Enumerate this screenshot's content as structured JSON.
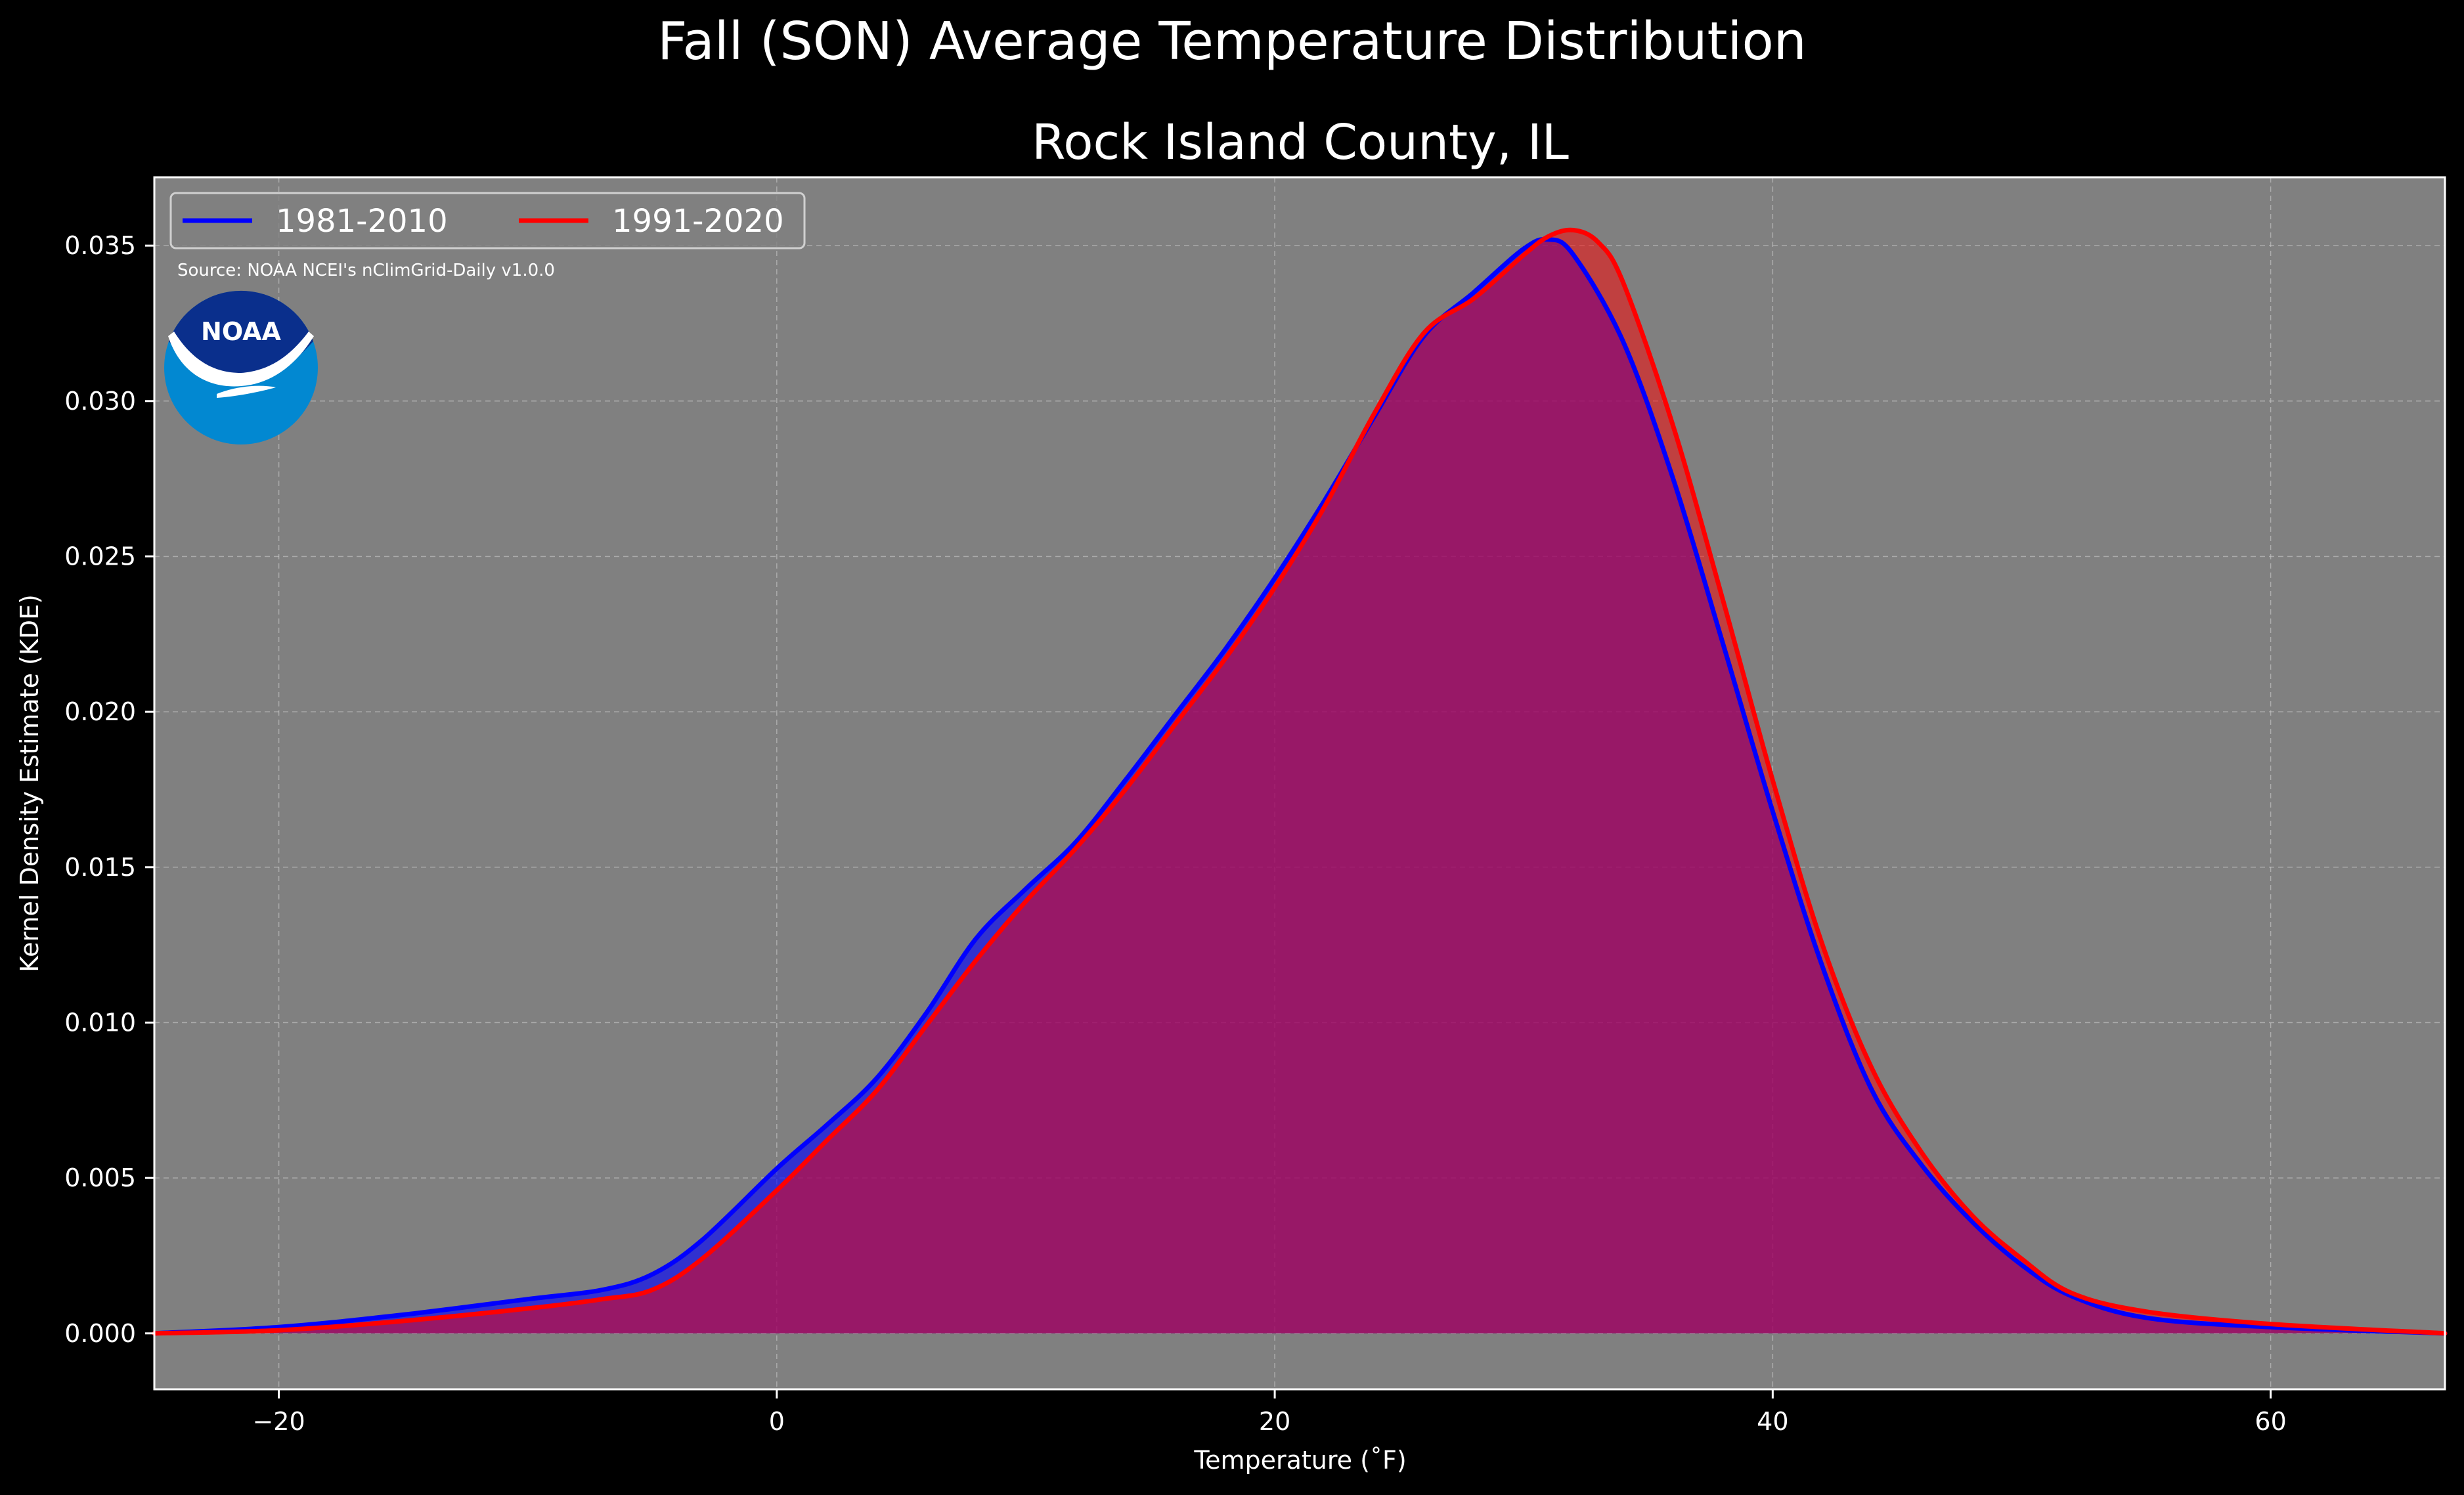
{
  "title": "Fall (SON) Average Temperature Distribution",
  "subtitle": "Rock Island County, IL",
  "source_note": "Source: NOAA NCEI's nClimGrid-Daily v1.0.0",
  "logo_text": "NOAA",
  "colors": {
    "background": "#000000",
    "plot_background": "#808080",
    "series_1981_2010": "#0000ff",
    "series_1991_2020": "#ff0000",
    "overlap_fill": "#9e1f5e",
    "logo_dark": "#0a2f8c",
    "logo_light": "#0288d1"
  },
  "chart_data": {
    "type": "area",
    "xlabel": "Temperature (˚F)",
    "ylabel": "Kernel Density Estimate (KDE)",
    "xlim": [
      -25,
      67
    ],
    "ylim": [
      -0.0018,
      0.0372
    ],
    "xticks": [
      -20,
      0,
      20,
      40,
      60
    ],
    "xtick_labels": [
      "−20",
      "0",
      "20",
      "40",
      "60"
    ],
    "yticks": [
      0,
      0.005,
      0.01,
      0.015,
      0.02,
      0.025,
      0.03,
      0.035
    ],
    "ytick_labels": [
      "0.000",
      "0.005",
      "0.010",
      "0.015",
      "0.020",
      "0.025",
      "0.030",
      "0.035"
    ],
    "grid": true,
    "legend_position": "top-left",
    "series": [
      {
        "name": "1981-2010",
        "color": "#0000ff",
        "x": [
          -25,
          -20,
          -15,
          -10,
          -7,
          -5,
          -3,
          0,
          2,
          4,
          6,
          8,
          10,
          12,
          14,
          16,
          18,
          20,
          22,
          24,
          26,
          28,
          30,
          31,
          32,
          34,
          36,
          38,
          40,
          42,
          44,
          46,
          48,
          50,
          52,
          55,
          60,
          67
        ],
        "y": [
          0,
          0.0002,
          0.0006,
          0.0011,
          0.0014,
          0.0019,
          0.003,
          0.0053,
          0.0067,
          0.0082,
          0.0103,
          0.0127,
          0.0143,
          0.0158,
          0.0178,
          0.0199,
          0.022,
          0.0243,
          0.0268,
          0.0295,
          0.0321,
          0.0335,
          0.0349,
          0.0352,
          0.0347,
          0.0319,
          0.0275,
          0.0222,
          0.0168,
          0.0118,
          0.0078,
          0.0054,
          0.0036,
          0.0022,
          0.0012,
          0.0005,
          0.0002,
          0
        ]
      },
      {
        "name": "1991-2020",
        "color": "#ff0000",
        "x": [
          -25,
          -20,
          -15,
          -10,
          -7,
          -5,
          -3,
          0,
          2,
          4,
          6,
          8,
          10,
          12,
          14,
          16,
          18,
          20,
          22,
          24,
          26,
          28,
          30,
          31,
          32,
          33,
          34,
          36,
          38,
          40,
          42,
          44,
          46,
          48,
          50,
          52,
          55,
          60,
          67
        ],
        "y": [
          0,
          0.0001,
          0.0004,
          0.0008,
          0.0011,
          0.0014,
          0.0024,
          0.0046,
          0.0062,
          0.0078,
          0.0099,
          0.012,
          0.0139,
          0.0156,
          0.0175,
          0.0196,
          0.0217,
          0.024,
          0.0266,
          0.0296,
          0.0322,
          0.0333,
          0.0347,
          0.0353,
          0.0355,
          0.0351,
          0.0338,
          0.0292,
          0.0236,
          0.0178,
          0.0125,
          0.0085,
          0.0058,
          0.0038,
          0.0024,
          0.0013,
          0.0007,
          0.0003,
          0
        ]
      }
    ]
  }
}
